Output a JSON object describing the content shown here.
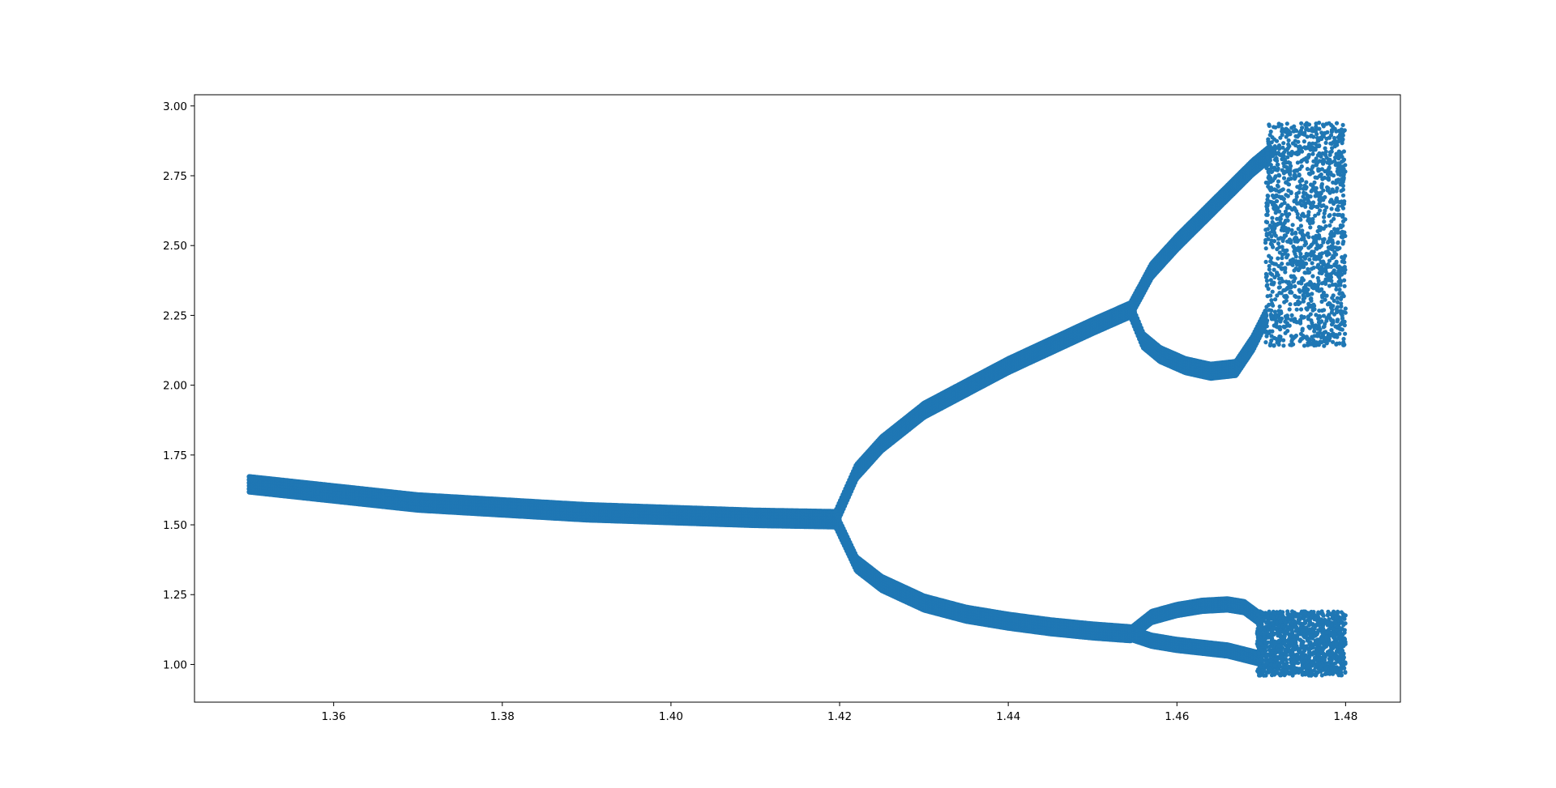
{
  "chart_data": {
    "type": "scatter",
    "title": "",
    "xlabel": "",
    "ylabel": "",
    "xlim": [
      1.3435,
      1.4865
    ],
    "ylim": [
      0.865,
      3.04
    ],
    "grid": false,
    "legend": "none",
    "marker_color": "#1f77b4",
    "x_ticks": [
      1.36,
      1.38,
      1.4,
      1.42,
      1.44,
      1.46,
      1.48
    ],
    "x_tick_labels": [
      "1.36",
      "1.38",
      "1.40",
      "1.42",
      "1.44",
      "1.46",
      "1.48"
    ],
    "y_ticks": [
      1.0,
      1.25,
      1.5,
      1.75,
      2.0,
      2.25,
      2.5,
      2.75,
      3.0
    ],
    "y_tick_labels": [
      "1.00",
      "1.25",
      "1.50",
      "1.75",
      "2.00",
      "2.25",
      "2.50",
      "2.75",
      "3.00"
    ],
    "x_range": [
      1.35,
      1.48
    ],
    "bifurcation_points": [
      {
        "x": 1.4195,
        "y": 1.52
      },
      {
        "x": 1.4545,
        "y": 2.27
      },
      {
        "x": 1.4545,
        "y": 1.11
      }
    ],
    "branches": [
      {
        "x": [
          1.35,
          1.37,
          1.39,
          1.41,
          1.4195
        ],
        "y": [
          1.645,
          1.58,
          1.545,
          1.525,
          1.52
        ],
        "spread": 0.055
      },
      {
        "x": [
          1.4195,
          1.422,
          1.425,
          1.43,
          1.435,
          1.44,
          1.445,
          1.45,
          1.4545
        ],
        "y": [
          1.52,
          1.69,
          1.79,
          1.91,
          1.99,
          2.07,
          2.14,
          2.21,
          2.27
        ],
        "spread": 0.05
      },
      {
        "x": [
          1.4195,
          1.422,
          1.425,
          1.43,
          1.435,
          1.44,
          1.445,
          1.45,
          1.4545
        ],
        "y": [
          1.52,
          1.36,
          1.29,
          1.22,
          1.18,
          1.155,
          1.135,
          1.12,
          1.11
        ],
        "spread": 0.05
      },
      {
        "x": [
          1.4545,
          1.457,
          1.46,
          1.463,
          1.466,
          1.469,
          1.471
        ],
        "y": [
          2.27,
          2.41,
          2.51,
          2.6,
          2.69,
          2.78,
          2.83
        ],
        "spread": 0.05
      },
      {
        "x": [
          1.4545,
          1.456,
          1.458,
          1.461,
          1.464,
          1.467,
          1.469,
          1.4705
        ],
        "y": [
          2.27,
          2.16,
          2.11,
          2.07,
          2.05,
          2.06,
          2.15,
          2.24
        ],
        "spread": 0.05
      },
      {
        "x": [
          1.4545,
          1.457,
          1.46,
          1.463,
          1.466,
          1.468,
          1.47
        ],
        "y": [
          1.11,
          1.17,
          1.195,
          1.21,
          1.215,
          1.205,
          1.16
        ],
        "spread": 0.04
      },
      {
        "x": [
          1.4545,
          1.457,
          1.46,
          1.463,
          1.466,
          1.468,
          1.47
        ],
        "y": [
          1.11,
          1.085,
          1.07,
          1.06,
          1.05,
          1.035,
          1.02
        ],
        "spread": 0.04
      }
    ],
    "chaotic_regions": [
      {
        "x_range": [
          1.4705,
          1.48
        ],
        "y_range": [
          2.14,
          2.94
        ],
        "points": 1400
      },
      {
        "x_range": [
          1.4695,
          1.48
        ],
        "y_range": [
          0.96,
          1.19
        ],
        "points": 1300
      }
    ]
  }
}
